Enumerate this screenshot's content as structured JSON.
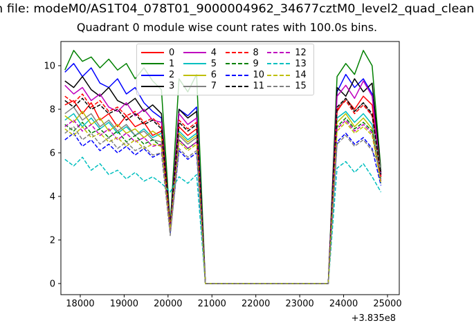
{
  "title_line1": "n file: modeM0/AS1T04_078T01_9000004962_34677cztM0_level2_quad_clean",
  "title_line2": "Quadrant 0 module wise count rates with 100.0s bins.",
  "chart_data": {
    "type": "line",
    "title": "Quadrant 0 module wise count rates with 100.0s bins.",
    "xlabel": "",
    "ylabel": "",
    "x_offset_label": "+3.835e8",
    "xlim": [
      17559,
      25268
    ],
    "ylim": [
      -0.51,
      11.11
    ],
    "xticks": [
      18000,
      19000,
      20000,
      21000,
      22000,
      23000,
      24000,
      25000
    ],
    "xticklabels": [
      "18000",
      "19000",
      "20000",
      "21000",
      "22000",
      "23000",
      "24000",
      "25000"
    ],
    "yticks": [
      0,
      2,
      4,
      6,
      8,
      10
    ],
    "yticklabels": [
      "0",
      "2",
      "4",
      "6",
      "8",
      "10"
    ],
    "grid": false,
    "legend_position": "upper center",
    "legend_columns": 4,
    "x": [
      17650,
      17850,
      18050,
      18250,
      18450,
      18650,
      18850,
      19050,
      19250,
      19450,
      19650,
      19850,
      20050,
      20250,
      20450,
      20650,
      20850,
      21050,
      21250,
      21450,
      21650,
      21850,
      22050,
      22250,
      22450,
      22650,
      22850,
      23050,
      23250,
      23450,
      23650,
      23850,
      24050,
      24250,
      24450,
      24650,
      24850
    ],
    "series": [
      {
        "name": "0",
        "color": "#ff0000",
        "dash": false,
        "values": [
          8.2,
          8.4,
          7.8,
          8.3,
          7.5,
          7.8,
          7.2,
          7.7,
          7.2,
          7.4,
          6.8,
          7.0,
          2.6,
          7.2,
          6.8,
          7.1,
          0,
          0,
          0,
          0,
          0,
          0,
          0,
          0,
          0,
          0,
          0,
          0,
          0,
          0,
          0,
          7.9,
          8.5,
          8.0,
          8.6,
          8.2,
          4.9
        ]
      },
      {
        "name": "1",
        "color": "#008000",
        "dash": false,
        "values": [
          9.8,
          10.7,
          10.2,
          10.4,
          9.9,
          10.3,
          9.8,
          10.1,
          9.4,
          9.9,
          9.3,
          8.9,
          2.7,
          9.4,
          8.8,
          9.6,
          0,
          0,
          0,
          0,
          0,
          0,
          0,
          0,
          0,
          0,
          0,
          0,
          0,
          0,
          0,
          9.5,
          10.1,
          9.6,
          10.7,
          10.0,
          5.2
        ]
      },
      {
        "name": "2",
        "color": "#0000ff",
        "dash": false,
        "values": [
          9.7,
          10.1,
          9.5,
          9.9,
          9.2,
          9.0,
          9.4,
          8.7,
          9.0,
          8.3,
          7.9,
          7.6,
          2.6,
          8.0,
          7.7,
          8.1,
          0,
          0,
          0,
          0,
          0,
          0,
          0,
          0,
          0,
          0,
          0,
          0,
          0,
          0,
          0,
          8.8,
          9.6,
          9.0,
          9.4,
          8.7,
          5.0
        ]
      },
      {
        "name": "3",
        "color": "#000000",
        "dash": false,
        "values": [
          9.3,
          9.0,
          9.5,
          8.9,
          8.6,
          9.0,
          8.4,
          8.2,
          8.5,
          7.9,
          8.2,
          7.8,
          2.5,
          8.0,
          7.6,
          7.9,
          0,
          0,
          0,
          0,
          0,
          0,
          0,
          0,
          0,
          0,
          0,
          0,
          0,
          0,
          0,
          9.0,
          8.6,
          9.4,
          8.8,
          9.2,
          5.1
        ]
      },
      {
        "name": "4",
        "color": "#bf00bf",
        "dash": false,
        "values": [
          9.1,
          8.7,
          9.0,
          8.4,
          8.7,
          8.1,
          7.9,
          8.3,
          7.7,
          8.0,
          7.5,
          7.4,
          2.5,
          7.8,
          7.3,
          7.6,
          0,
          0,
          0,
          0,
          0,
          0,
          0,
          0,
          0,
          0,
          0,
          0,
          0,
          0,
          0,
          8.6,
          9.1,
          8.5,
          9.3,
          8.6,
          4.9
        ]
      },
      {
        "name": "5",
        "color": "#00bfbf",
        "dash": false,
        "values": [
          7.5,
          7.8,
          7.2,
          7.6,
          7.1,
          7.4,
          6.9,
          7.2,
          6.8,
          7.1,
          6.7,
          6.9,
          2.5,
          7.0,
          6.6,
          6.9,
          0,
          0,
          0,
          0,
          0,
          0,
          0,
          0,
          0,
          0,
          0,
          0,
          0,
          0,
          0,
          7.6,
          7.9,
          7.4,
          7.8,
          7.3,
          4.8
        ]
      },
      {
        "name": "6",
        "color": "#bfbf00",
        "dash": false,
        "values": [
          7.7,
          7.4,
          7.9,
          7.3,
          7.6,
          7.0,
          7.3,
          6.9,
          7.1,
          6.7,
          7.0,
          6.7,
          2.4,
          6.9,
          6.5,
          6.8,
          0,
          0,
          0,
          0,
          0,
          0,
          0,
          0,
          0,
          0,
          0,
          0,
          0,
          0,
          0,
          7.4,
          7.8,
          7.2,
          7.6,
          7.1,
          4.7
        ]
      },
      {
        "name": "7",
        "color": "#808080",
        "dash": false,
        "values": [
          7.8,
          8.1,
          7.5,
          7.8,
          7.2,
          7.5,
          7.0,
          7.3,
          6.8,
          7.0,
          6.6,
          6.5,
          2.3,
          6.8,
          6.4,
          6.7,
          0,
          0,
          0,
          0,
          0,
          0,
          0,
          0,
          0,
          0,
          0,
          0,
          0,
          0,
          0,
          8.0,
          8.5,
          7.9,
          8.3,
          7.7,
          5.2
        ]
      },
      {
        "name": "8",
        "color": "#ff0000",
        "dash": true,
        "values": [
          8.6,
          8.3,
          8.7,
          8.1,
          8.4,
          7.9,
          8.1,
          7.7,
          7.9,
          7.4,
          7.6,
          7.2,
          2.6,
          7.5,
          7.1,
          7.4,
          0,
          0,
          0,
          0,
          0,
          0,
          0,
          0,
          0,
          0,
          0,
          0,
          0,
          0,
          0,
          8.0,
          8.4,
          7.8,
          8.2,
          7.7,
          4.9
        ]
      },
      {
        "name": "9",
        "color": "#008000",
        "dash": true,
        "values": [
          7.3,
          7.0,
          7.4,
          6.9,
          7.1,
          6.7,
          7.0,
          6.5,
          6.8,
          6.4,
          6.6,
          6.3,
          2.4,
          6.6,
          6.2,
          6.5,
          0,
          0,
          0,
          0,
          0,
          0,
          0,
          0,
          0,
          0,
          0,
          0,
          0,
          0,
          0,
          7.2,
          7.6,
          7.1,
          7.4,
          7.0,
          4.6
        ]
      },
      {
        "name": "10",
        "color": "#0000ff",
        "dash": true,
        "values": [
          6.6,
          6.9,
          6.3,
          6.6,
          6.1,
          6.4,
          6.0,
          6.3,
          5.9,
          6.2,
          5.8,
          6.0,
          2.3,
          6.1,
          5.7,
          6.0,
          0,
          0,
          0,
          0,
          0,
          0,
          0,
          0,
          0,
          0,
          0,
          0,
          0,
          0,
          0,
          6.5,
          6.9,
          6.4,
          6.7,
          6.2,
          4.5
        ]
      },
      {
        "name": "11",
        "color": "#000000",
        "dash": true,
        "values": [
          8.4,
          8.1,
          8.5,
          8.0,
          8.2,
          7.8,
          8.0,
          7.5,
          7.8,
          7.3,
          7.5,
          7.1,
          2.5,
          7.4,
          7.0,
          7.3,
          0,
          0,
          0,
          0,
          0,
          0,
          0,
          0,
          0,
          0,
          0,
          0,
          0,
          0,
          0,
          8.1,
          8.5,
          7.9,
          8.3,
          7.8,
          5.0
        ]
      },
      {
        "name": "12",
        "color": "#bf00bf",
        "dash": true,
        "values": [
          7.2,
          7.5,
          7.0,
          7.3,
          6.8,
          7.1,
          6.6,
          6.9,
          6.5,
          6.7,
          6.3,
          6.4,
          2.4,
          6.6,
          6.2,
          6.5,
          0,
          0,
          0,
          0,
          0,
          0,
          0,
          0,
          0,
          0,
          0,
          0,
          0,
          0,
          0,
          7.1,
          7.5,
          7.0,
          7.3,
          6.9,
          4.7
        ]
      },
      {
        "name": "13",
        "color": "#00bfbf",
        "dash": true,
        "values": [
          5.7,
          5.4,
          5.8,
          5.2,
          5.5,
          5.0,
          5.2,
          4.8,
          5.1,
          4.7,
          4.9,
          4.6,
          4.2,
          4.9,
          4.6,
          5.0,
          0,
          0,
          0,
          0,
          0,
          0,
          0,
          0,
          0,
          0,
          0,
          0,
          0,
          0,
          0,
          5.3,
          5.6,
          5.1,
          5.5,
          4.9,
          4.2
        ]
      },
      {
        "name": "14",
        "color": "#bfbf00",
        "dash": true,
        "values": [
          7.1,
          6.8,
          7.2,
          6.7,
          6.9,
          6.5,
          6.7,
          6.3,
          6.6,
          6.2,
          6.4,
          6.3,
          2.4,
          6.5,
          6.1,
          6.4,
          0,
          0,
          0,
          0,
          0,
          0,
          0,
          0,
          0,
          0,
          0,
          0,
          0,
          0,
          0,
          7.0,
          7.4,
          6.9,
          7.2,
          6.8,
          4.6
        ]
      },
      {
        "name": "15",
        "color": "#808080",
        "dash": true,
        "values": [
          6.9,
          7.2,
          6.6,
          6.9,
          6.4,
          6.7,
          6.2,
          6.5,
          6.1,
          6.3,
          5.9,
          6.0,
          2.2,
          6.2,
          5.8,
          6.1,
          0,
          0,
          0,
          0,
          0,
          0,
          0,
          0,
          0,
          0,
          0,
          0,
          0,
          0,
          0,
          6.4,
          6.8,
          6.3,
          6.6,
          6.1,
          5.3
        ]
      }
    ],
    "axis_color": "#000000",
    "legend_border_color": "#cccccc"
  }
}
